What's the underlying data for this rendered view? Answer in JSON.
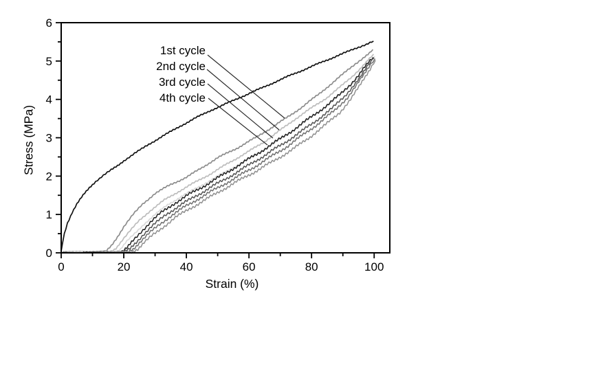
{
  "figure": {
    "background": "#ffffff",
    "axis_color": "#000000",
    "text_color": "#000000"
  },
  "chart_data": {
    "type": "line",
    "title": "",
    "xlabel": "Strain (%)",
    "ylabel": "Stress (MPa)",
    "xlim": [
      0,
      105
    ],
    "ylim": [
      0,
      6
    ],
    "grid": false,
    "x_ticks": {
      "major": [
        0,
        20,
        40,
        60,
        80,
        100
      ],
      "minor": [
        10,
        30,
        50,
        70,
        90
      ],
      "labels": [
        "0",
        "20",
        "40",
        "60",
        "80",
        "100"
      ]
    },
    "y_ticks": {
      "major": [
        0,
        1,
        2,
        3,
        4,
        5,
        6
      ],
      "minor": [
        0.5,
        1.5,
        2.5,
        3.5,
        4.5,
        5.5
      ],
      "labels": [
        "0",
        "1",
        "2",
        "3",
        "4",
        "5",
        "6"
      ]
    },
    "legend": {
      "position": "inside-upper-left",
      "items": [
        "1st cycle",
        "2nd cycle",
        "3rd cycle",
        "4th cycle"
      ]
    },
    "series": [
      {
        "name": "loading-curve-1st-cycle",
        "color": "#111111",
        "width": 1.7,
        "wobble": 0.8,
        "points": [
          [
            0,
            0.03
          ],
          [
            0.4,
            0.25
          ],
          [
            1,
            0.5
          ],
          [
            2,
            0.78
          ],
          [
            3.5,
            1.05
          ],
          [
            5,
            1.27
          ],
          [
            7,
            1.5
          ],
          [
            9,
            1.7
          ],
          [
            11,
            1.86
          ],
          [
            13.5,
            2.02
          ],
          [
            16,
            2.16
          ],
          [
            18,
            2.27
          ],
          [
            20,
            2.4
          ],
          [
            24,
            2.62
          ],
          [
            28,
            2.83
          ],
          [
            33,
            3.07
          ],
          [
            38,
            3.3
          ],
          [
            43,
            3.52
          ],
          [
            48,
            3.72
          ],
          [
            53,
            3.9
          ],
          [
            58,
            4.08
          ],
          [
            63,
            4.26
          ],
          [
            68,
            4.44
          ],
          [
            73,
            4.62
          ],
          [
            78,
            4.79
          ],
          [
            83,
            4.96
          ],
          [
            88,
            5.13
          ],
          [
            92,
            5.26
          ],
          [
            95,
            5.36
          ],
          [
            97.5,
            5.44
          ],
          [
            99.2,
            5.5
          ],
          [
            99.8,
            5.52
          ]
        ]
      },
      {
        "name": "1st-cycle-hysteresis-branch",
        "color": "#8c8c8c",
        "width": 1.7,
        "wobble": 0.9,
        "points": [
          [
            0.4,
            0.03
          ],
          [
            6,
            0.03
          ],
          [
            11,
            0.03
          ],
          [
            14.5,
            0.05
          ],
          [
            16,
            0.18
          ],
          [
            18,
            0.42
          ],
          [
            20,
            0.68
          ],
          [
            23,
            1.0
          ],
          [
            26,
            1.27
          ],
          [
            30,
            1.55
          ],
          [
            35,
            1.78
          ],
          [
            40,
            1.97
          ],
          [
            45,
            2.22
          ],
          [
            50,
            2.48
          ],
          [
            56,
            2.72
          ],
          [
            62,
            3.0
          ],
          [
            67,
            3.25
          ],
          [
            71.4,
            3.49
          ],
          [
            77,
            3.8
          ],
          [
            82,
            4.12
          ],
          [
            87,
            4.45
          ],
          [
            91,
            4.73
          ],
          [
            94,
            4.93
          ],
          [
            96.5,
            5.08
          ],
          [
            98.5,
            5.2
          ],
          [
            99.6,
            5.3
          ]
        ]
      },
      {
        "name": "2nd-cycle-hysteresis-branch",
        "color": "#bcbcbc",
        "width": 1.7,
        "wobble": 0.9,
        "points": [
          [
            2,
            0.02
          ],
          [
            9,
            0.02
          ],
          [
            16,
            0.04
          ],
          [
            17.5,
            0.12
          ],
          [
            19.5,
            0.33
          ],
          [
            22,
            0.57
          ],
          [
            25,
            0.85
          ],
          [
            28.5,
            1.1
          ],
          [
            33,
            1.38
          ],
          [
            38,
            1.62
          ],
          [
            43,
            1.85
          ],
          [
            48,
            2.07
          ],
          [
            53,
            2.32
          ],
          [
            59,
            2.6
          ],
          [
            65,
            2.9
          ],
          [
            70,
            3.2
          ],
          [
            75,
            3.5
          ],
          [
            80,
            3.78
          ],
          [
            85,
            4.05
          ],
          [
            89.5,
            4.35
          ],
          [
            93,
            4.6
          ],
          [
            95.5,
            4.8
          ],
          [
            97.5,
            4.97
          ],
          [
            99,
            5.1
          ],
          [
            99.8,
            5.18
          ]
        ]
      },
      {
        "name": "3rd-cycle-hysteresis-branch",
        "color": "#d9d9d9",
        "width": 1.7,
        "wobble": 0.9,
        "points": [
          [
            4,
            0.02
          ],
          [
            11,
            0.02
          ],
          [
            17.5,
            0.03
          ],
          [
            19,
            0.1
          ],
          [
            21,
            0.3
          ],
          [
            23.5,
            0.5
          ],
          [
            26.5,
            0.75
          ],
          [
            30,
            1.0
          ],
          [
            34,
            1.25
          ],
          [
            39,
            1.5
          ],
          [
            44,
            1.72
          ],
          [
            49,
            1.95
          ],
          [
            54,
            2.18
          ],
          [
            60,
            2.45
          ],
          [
            66,
            2.75
          ],
          [
            71,
            3.02
          ],
          [
            76,
            3.3
          ],
          [
            81,
            3.6
          ],
          [
            86,
            3.9
          ],
          [
            90.5,
            4.22
          ],
          [
            94,
            4.5
          ],
          [
            96.5,
            4.72
          ],
          [
            98.2,
            4.9
          ],
          [
            99.5,
            5.03
          ],
          [
            100.2,
            5.12
          ]
        ]
      },
      {
        "name": "4th-cycle-cluster-curve-a",
        "color": "#1f1f1f",
        "width": 1.5,
        "wobble": 1.6,
        "points": [
          [
            7,
            0.02
          ],
          [
            13,
            0.02
          ],
          [
            19.5,
            0.03
          ],
          [
            21,
            0.12
          ],
          [
            23,
            0.32
          ],
          [
            25.5,
            0.55
          ],
          [
            28.5,
            0.8
          ],
          [
            32,
            1.05
          ],
          [
            36,
            1.28
          ],
          [
            41,
            1.53
          ],
          [
            46,
            1.76
          ],
          [
            51,
            2.0
          ],
          [
            57,
            2.3
          ],
          [
            63,
            2.6
          ],
          [
            69,
            2.92
          ],
          [
            75,
            3.25
          ],
          [
            80,
            3.55
          ],
          [
            85,
            3.85
          ],
          [
            89,
            4.12
          ],
          [
            92.5,
            4.4
          ],
          [
            95,
            4.63
          ],
          [
            97,
            4.84
          ],
          [
            98.7,
            5.0
          ],
          [
            99.7,
            5.1
          ]
        ]
      },
      {
        "name": "4th-cycle-cluster-curve-b",
        "color": "#525252",
        "width": 1.5,
        "wobble": 1.6,
        "points": [
          [
            9,
            0.02
          ],
          [
            14,
            0.02
          ],
          [
            20.5,
            0.03
          ],
          [
            22,
            0.1
          ],
          [
            24,
            0.28
          ],
          [
            26.5,
            0.5
          ],
          [
            30,
            0.76
          ],
          [
            33.5,
            1.0
          ],
          [
            38,
            1.24
          ],
          [
            43,
            1.48
          ],
          [
            48,
            1.72
          ],
          [
            53,
            1.95
          ],
          [
            59,
            2.24
          ],
          [
            65,
            2.54
          ],
          [
            71,
            2.85
          ],
          [
            77,
            3.18
          ],
          [
            82,
            3.48
          ],
          [
            86.5,
            3.76
          ],
          [
            90.5,
            4.08
          ],
          [
            93.5,
            4.37
          ],
          [
            96,
            4.62
          ],
          [
            97.8,
            4.85
          ],
          [
            99.2,
            5.0
          ],
          [
            100,
            5.08
          ]
        ]
      },
      {
        "name": "4th-cycle-cluster-curve-c",
        "color": "#6f6f6f",
        "width": 1.5,
        "wobble": 1.6,
        "points": [
          [
            11,
            0.02
          ],
          [
            16,
            0.02
          ],
          [
            21.5,
            0.03
          ],
          [
            23,
            0.1
          ],
          [
            25,
            0.27
          ],
          [
            28,
            0.5
          ],
          [
            31.5,
            0.74
          ],
          [
            35,
            0.96
          ],
          [
            39.5,
            1.2
          ],
          [
            44.5,
            1.44
          ],
          [
            49.5,
            1.67
          ],
          [
            54.5,
            1.9
          ],
          [
            60.5,
            2.18
          ],
          [
            66.5,
            2.48
          ],
          [
            72.5,
            2.79
          ],
          [
            78,
            3.12
          ],
          [
            83,
            3.42
          ],
          [
            87.5,
            3.72
          ],
          [
            91.5,
            4.05
          ],
          [
            94.5,
            4.38
          ],
          [
            96.8,
            4.65
          ],
          [
            98.3,
            4.85
          ],
          [
            99.5,
            5.0
          ],
          [
            100.3,
            5.06
          ]
        ]
      },
      {
        "name": "4th-cycle-cluster-curve-d",
        "color": "#8f8f8f",
        "width": 1.5,
        "wobble": 1.6,
        "points": [
          [
            13,
            0.02
          ],
          [
            18,
            0.02
          ],
          [
            22.5,
            0.03
          ],
          [
            24.5,
            0.1
          ],
          [
            26.5,
            0.26
          ],
          [
            29.5,
            0.48
          ],
          [
            33,
            0.7
          ],
          [
            36.5,
            0.92
          ],
          [
            41,
            1.15
          ],
          [
            46,
            1.38
          ],
          [
            51,
            1.62
          ],
          [
            56,
            1.85
          ],
          [
            62,
            2.12
          ],
          [
            68,
            2.4
          ],
          [
            74,
            2.7
          ],
          [
            79.5,
            3.02
          ],
          [
            84.5,
            3.34
          ],
          [
            89,
            3.66
          ],
          [
            92.5,
            4.0
          ],
          [
            95.2,
            4.33
          ],
          [
            97.2,
            4.6
          ],
          [
            98.7,
            4.8
          ],
          [
            99.8,
            4.96
          ],
          [
            100.4,
            5.02
          ]
        ]
      }
    ],
    "leader_lines": [
      {
        "from": [
          302,
          80
        ],
        "to": [
          414,
          172
        ]
      },
      {
        "from": [
          301,
          101
        ],
        "to": [
          406,
          189
        ]
      },
      {
        "from": [
          302,
          122
        ],
        "to": [
          397,
          201
        ]
      },
      {
        "from": [
          303,
          143
        ],
        "to": [
          389,
          211
        ]
      }
    ]
  }
}
